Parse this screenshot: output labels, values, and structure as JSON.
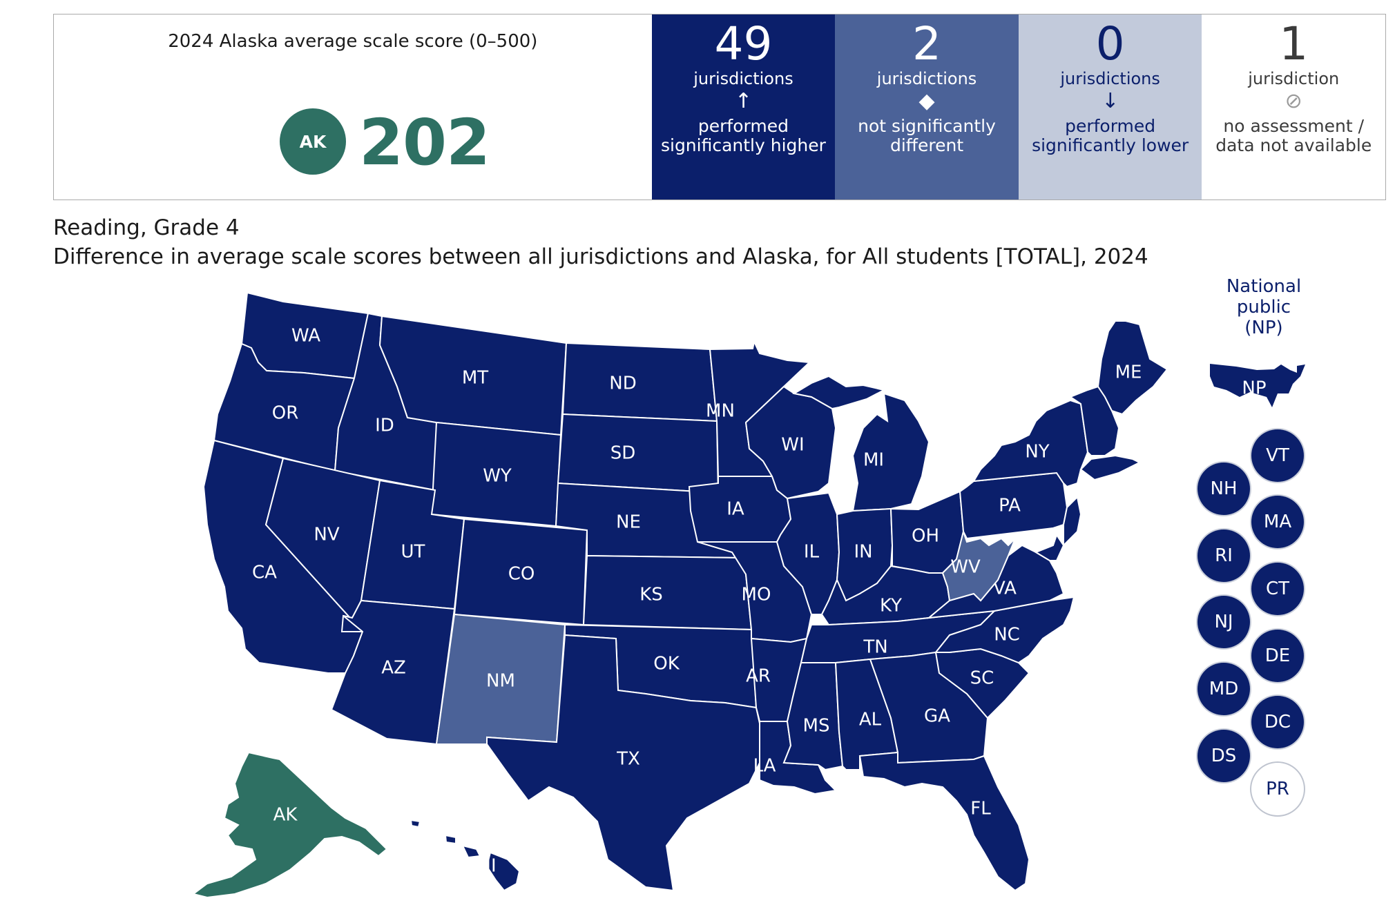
{
  "summary": {
    "title": "2024 Alaska average scale score (0–500)",
    "badge": "AK",
    "score": "202",
    "categories": [
      {
        "count": "49",
        "unit": "jurisdictions",
        "symbol": "↑",
        "line1": "performed",
        "line2": "significantly higher"
      },
      {
        "count": "2",
        "unit": "jurisdictions",
        "symbol": "◆",
        "line1": "not significantly",
        "line2": "different"
      },
      {
        "count": "0",
        "unit": "jurisdictions",
        "symbol": "↓",
        "line1": "performed",
        "line2": "significantly lower"
      },
      {
        "count": "1",
        "unit": "jurisdiction",
        "symbol": "⊘",
        "line1": "no assessment /",
        "line2": "data not available"
      }
    ]
  },
  "heading": {
    "subject": "Reading, Grade 4",
    "subtitle": "Difference in average scale scores between all jurisdictions and Alaska, for All students [TOTAL], 2024"
  },
  "colors": {
    "higher": "#0b1f6b",
    "not_different": "#4b6298",
    "lower": "#c2cadb",
    "focal": "#2e7063",
    "no_data": "#ffffff"
  },
  "map": {
    "np_title": [
      "National",
      "public",
      "(NP)"
    ],
    "np_label": "NP",
    "states": {
      "WA": {
        "label": "WA",
        "status": "higher"
      },
      "OR": {
        "label": "OR",
        "status": "higher"
      },
      "CA": {
        "label": "CA",
        "status": "higher"
      },
      "ID": {
        "label": "ID",
        "status": "higher"
      },
      "NV": {
        "label": "NV",
        "status": "higher"
      },
      "MT": {
        "label": "MT",
        "status": "higher"
      },
      "WY": {
        "label": "WY",
        "status": "higher"
      },
      "UT": {
        "label": "UT",
        "status": "higher"
      },
      "AZ": {
        "label": "AZ",
        "status": "higher"
      },
      "CO": {
        "label": "CO",
        "status": "higher"
      },
      "NM": {
        "label": "NM",
        "status": "not_different"
      },
      "ND": {
        "label": "ND",
        "status": "higher"
      },
      "SD": {
        "label": "SD",
        "status": "higher"
      },
      "NE": {
        "label": "NE",
        "status": "higher"
      },
      "KS": {
        "label": "KS",
        "status": "higher"
      },
      "OK": {
        "label": "OK",
        "status": "higher"
      },
      "TX": {
        "label": "TX",
        "status": "higher"
      },
      "MN": {
        "label": "MN",
        "status": "higher"
      },
      "IA": {
        "label": "IA",
        "status": "higher"
      },
      "MO": {
        "label": "MO",
        "status": "higher"
      },
      "AR": {
        "label": "AR",
        "status": "higher"
      },
      "LA": {
        "label": "LA",
        "status": "higher"
      },
      "WI": {
        "label": "WI",
        "status": "higher"
      },
      "IL": {
        "label": "IL",
        "status": "higher"
      },
      "MI": {
        "label": "MI",
        "status": "higher"
      },
      "IN": {
        "label": "IN",
        "status": "higher"
      },
      "OH": {
        "label": "OH",
        "status": "higher"
      },
      "KY": {
        "label": "KY",
        "status": "higher"
      },
      "TN": {
        "label": "TN",
        "status": "higher"
      },
      "MS": {
        "label": "MS",
        "status": "higher"
      },
      "AL": {
        "label": "AL",
        "status": "higher"
      },
      "GA": {
        "label": "GA",
        "status": "higher"
      },
      "FL": {
        "label": "FL",
        "status": "higher"
      },
      "SC": {
        "label": "SC",
        "status": "higher"
      },
      "NC": {
        "label": "NC",
        "status": "higher"
      },
      "VA": {
        "label": "VA",
        "status": "higher"
      },
      "WV": {
        "label": "WV",
        "status": "not_different"
      },
      "PA": {
        "label": "PA",
        "status": "higher"
      },
      "NY": {
        "label": "NY",
        "status": "higher"
      },
      "ME": {
        "label": "ME",
        "status": "higher"
      },
      "AK": {
        "label": "AK",
        "status": "focal"
      },
      "HI": {
        "label": "HI",
        "status": "higher"
      }
    },
    "small": [
      {
        "label": "VT",
        "status": "higher"
      },
      {
        "label": "NH",
        "status": "higher"
      },
      {
        "label": "MA",
        "status": "higher"
      },
      {
        "label": "RI",
        "status": "higher"
      },
      {
        "label": "CT",
        "status": "higher"
      },
      {
        "label": "NJ",
        "status": "higher"
      },
      {
        "label": "DE",
        "status": "higher"
      },
      {
        "label": "MD",
        "status": "higher"
      },
      {
        "label": "DC",
        "status": "higher"
      },
      {
        "label": "DS",
        "status": "higher"
      },
      {
        "label": "PR",
        "status": "no_data"
      }
    ]
  }
}
